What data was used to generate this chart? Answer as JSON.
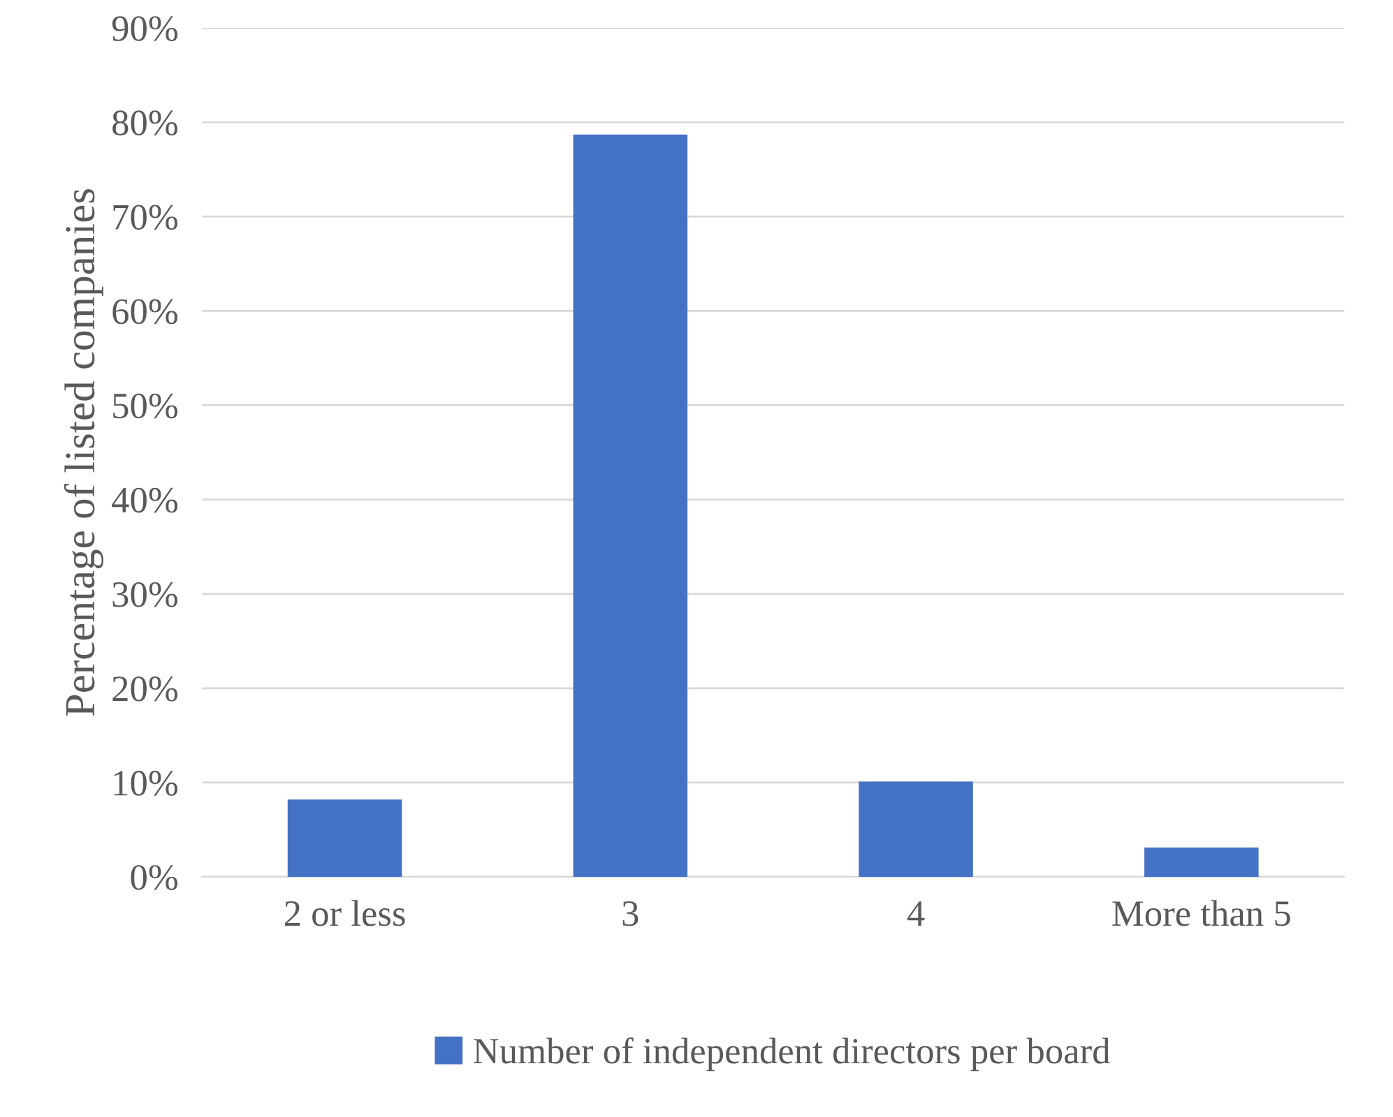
{
  "chart_data": {
    "type": "bar",
    "ylabel": "Percentage of listed companies",
    "categories": [
      "2 or less",
      "3",
      "4",
      "More than 5"
    ],
    "series": [
      {
        "name": "Number of independent directors per board",
        "color": "#4472c4",
        "values": [
          8.2,
          78.7,
          10.1,
          3.1
        ]
      }
    ],
    "ylim": [
      0,
      90
    ],
    "yticks": [
      {
        "value": 0,
        "label": "0%"
      },
      {
        "value": 10,
        "label": "10%"
      },
      {
        "value": 20,
        "label": "20%"
      },
      {
        "value": 30,
        "label": "30%"
      },
      {
        "value": 40,
        "label": "40%"
      },
      {
        "value": 50,
        "label": "50%"
      },
      {
        "value": 60,
        "label": "60%"
      },
      {
        "value": 70,
        "label": "70%"
      },
      {
        "value": 80,
        "label": "80%"
      },
      {
        "value": 90,
        "label": "90%"
      }
    ],
    "grid": "y",
    "legend": "bottom"
  }
}
